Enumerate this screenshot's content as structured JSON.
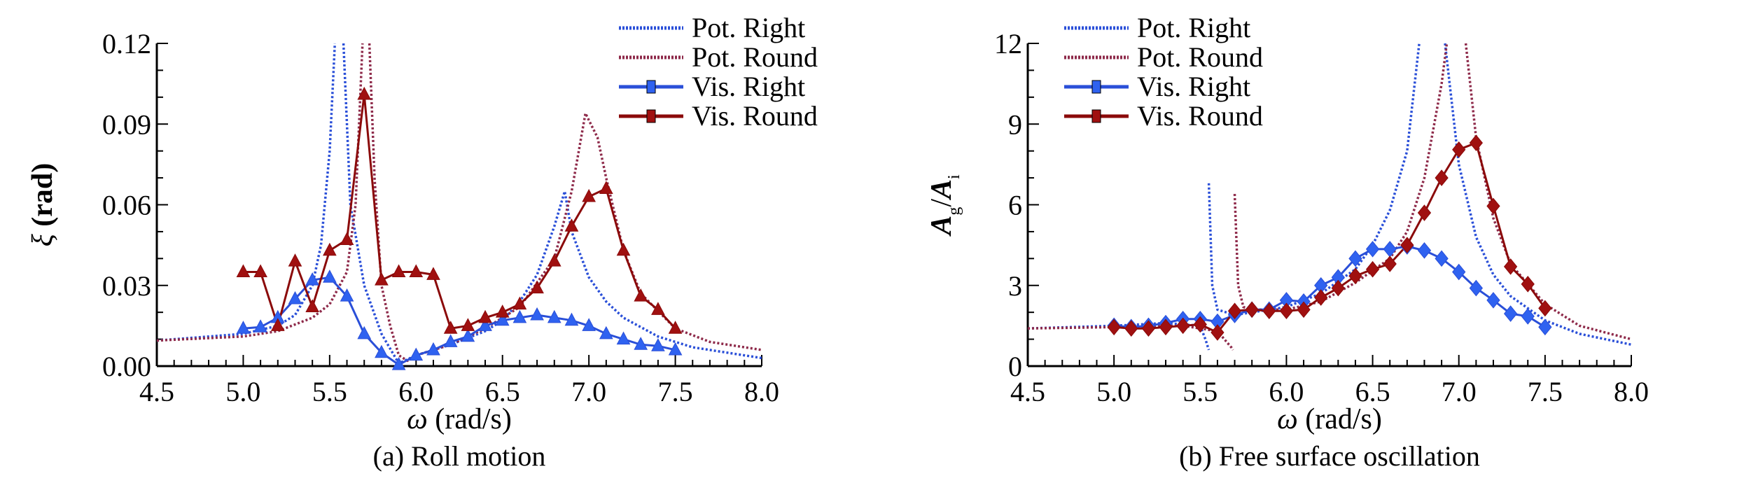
{
  "colors": {
    "pot_right": "#2a4fd8",
    "pot_round": "#8e2a4a",
    "vis_right": "#2f62f0",
    "vis_round": "#a01010",
    "vis_right_line": "#2a4fd8",
    "vis_round_line": "#8b0a0a"
  },
  "chart_data": [
    {
      "type": "line",
      "caption": "(a) Roll motion",
      "xlabel_symbol": "ω",
      "xlabel_unit": "(rad/s)",
      "ylabel_symbol": "ξ",
      "ylabel_unit": "(rad)",
      "xlim": [
        4.5,
        8.0
      ],
      "ylim": [
        0,
        0.12
      ],
      "xticks": [
        "4.5",
        "5.0",
        "5.5",
        "6.0",
        "6.5",
        "7.0",
        "7.5",
        "8.0"
      ],
      "yticks": [
        "0.00",
        "0.03",
        "0.06",
        "0.09",
        "0.12"
      ],
      "legend_placement": "top-right",
      "series": [
        {
          "name": "Pot. Right",
          "style": "dotted",
          "color_key": "pot_right",
          "x": [
            4.5,
            5.0,
            5.2,
            5.3,
            5.4,
            5.45,
            5.5,
            5.53,
            null,
            5.58,
            5.62,
            5.7,
            5.8,
            5.9,
            6.0,
            6.2,
            6.4,
            6.5,
            6.6,
            6.7,
            6.8,
            6.86,
            6.9,
            7.0,
            7.1,
            7.2,
            7.4,
            7.6,
            8.0
          ],
          "y": [
            0.0095,
            0.012,
            0.015,
            0.019,
            0.03,
            0.045,
            0.08,
            0.12,
            null,
            0.12,
            0.06,
            0.03,
            0.012,
            0.001,
            0.004,
            0.008,
            0.013,
            0.017,
            0.024,
            0.034,
            0.052,
            0.065,
            0.05,
            0.033,
            0.024,
            0.018,
            0.011,
            0.007,
            0.003
          ]
        },
        {
          "name": "Pot. Round",
          "style": "dotted",
          "color_key": "pot_round",
          "x": [
            4.5,
            5.0,
            5.2,
            5.4,
            5.5,
            5.6,
            5.65,
            5.69,
            null,
            5.73,
            5.76,
            5.8,
            5.85,
            5.9,
            5.95,
            6.0,
            6.2,
            6.4,
            6.6,
            6.8,
            6.9,
            6.98,
            7.05,
            7.1,
            7.2,
            7.3,
            7.5,
            7.7,
            8.0
          ],
          "y": [
            0.0095,
            0.011,
            0.013,
            0.018,
            0.023,
            0.035,
            0.06,
            0.12,
            null,
            0.12,
            0.07,
            0.03,
            0.015,
            0.004,
            0.002,
            0.004,
            0.008,
            0.014,
            0.022,
            0.04,
            0.065,
            0.094,
            0.085,
            0.07,
            0.043,
            0.027,
            0.014,
            0.009,
            0.006
          ]
        },
        {
          "name": "Vis. Right",
          "style": "solid",
          "marker": "triangle",
          "color_key": "vis_right",
          "x": [
            5.0,
            5.1,
            5.2,
            5.3,
            5.4,
            5.5,
            5.6,
            5.7,
            5.8,
            5.9,
            6.0,
            6.1,
            6.2,
            6.3,
            6.4,
            6.5,
            6.6,
            6.7,
            6.8,
            6.9,
            7.0,
            7.1,
            7.2,
            7.3,
            7.4,
            7.5
          ],
          "y": [
            0.014,
            0.0145,
            0.018,
            0.025,
            0.032,
            0.033,
            0.026,
            0.012,
            0.005,
            0.0005,
            0.004,
            0.006,
            0.009,
            0.011,
            0.015,
            0.017,
            0.018,
            0.019,
            0.018,
            0.017,
            0.015,
            0.012,
            0.01,
            0.008,
            0.0075,
            0.006
          ]
        },
        {
          "name": "Vis. Round",
          "style": "solid",
          "marker": "triangle",
          "color_key": "vis_round",
          "x": [
            5.0,
            5.1,
            5.2,
            5.3,
            5.4,
            5.5,
            5.6,
            5.7,
            5.8,
            5.9,
            6.0,
            6.1,
            6.2,
            6.3,
            6.4,
            6.5,
            6.6,
            6.7,
            6.8,
            6.9,
            7.0,
            7.1,
            7.2,
            7.3,
            7.4,
            7.5
          ],
          "y": [
            0.035,
            0.035,
            0.015,
            0.039,
            0.022,
            0.043,
            0.047,
            0.101,
            0.032,
            0.035,
            0.035,
            0.034,
            0.014,
            0.015,
            0.018,
            0.02,
            0.023,
            0.029,
            0.039,
            0.052,
            0.063,
            0.066,
            0.043,
            0.026,
            0.021,
            0.014
          ]
        }
      ]
    },
    {
      "type": "line",
      "caption": "(b) Free surface oscillation",
      "xlabel_symbol": "ω",
      "xlabel_unit": "(rad/s)",
      "ylabel_symbol": "A",
      "ylabel_sub1": "g",
      "ylabel_sep": "/",
      "ylabel_sub2": "i",
      "xlim": [
        4.5,
        8.0
      ],
      "ylim": [
        0,
        12
      ],
      "xticks": [
        "4.5",
        "5.0",
        "5.5",
        "6.0",
        "6.5",
        "7.0",
        "7.5",
        "8.0"
      ],
      "yticks": [
        "0",
        "3",
        "6",
        "9",
        "12"
      ],
      "legend_placement": "top-left",
      "series": [
        {
          "name": "Pot. Right",
          "style": "dotted",
          "color_key": "pot_right",
          "x": [
            4.5,
            5.0,
            5.3,
            5.5,
            5.53,
            5.55,
            null,
            5.55,
            5.57,
            5.6,
            5.7,
            5.8,
            6.0,
            6.2,
            6.4,
            6.5,
            6.6,
            6.7,
            6.77,
            null,
            6.92,
            7.0,
            7.1,
            7.2,
            7.3,
            7.5,
            7.7,
            8.0
          ],
          "y": [
            1.4,
            1.5,
            1.6,
            1.5,
            1.0,
            0.6,
            null,
            6.8,
            3.0,
            2.1,
            1.9,
            2.0,
            2.2,
            2.7,
            3.6,
            4.5,
            5.8,
            8.0,
            12,
            null,
            12,
            7.5,
            4.8,
            3.4,
            2.6,
            1.7,
            1.2,
            0.8
          ]
        },
        {
          "name": "Pot. Round",
          "style": "dotted",
          "color_key": "pot_round",
          "x": [
            4.5,
            5.0,
            5.4,
            5.6,
            5.68,
            5.69,
            null,
            5.7,
            5.72,
            5.75,
            5.8,
            6.0,
            6.2,
            6.4,
            6.6,
            6.7,
            6.8,
            6.9,
            6.93,
            null,
            7.04,
            7.1,
            7.2,
            7.3,
            7.5,
            7.7,
            8.0
          ],
          "y": [
            1.4,
            1.45,
            1.5,
            1.3,
            0.7,
            0.6,
            null,
            6.4,
            3.0,
            2.2,
            2.1,
            2.1,
            2.4,
            3.1,
            4.0,
            5.0,
            7.0,
            10.5,
            12,
            null,
            12,
            8.5,
            5.5,
            3.8,
            2.3,
            1.5,
            1.0
          ]
        },
        {
          "name": "Vis. Right",
          "style": "solid",
          "marker": "diamond",
          "color_key": "vis_right",
          "x": [
            5.0,
            5.1,
            5.2,
            5.3,
            5.4,
            5.5,
            5.6,
            5.7,
            5.8,
            5.9,
            6.0,
            6.1,
            6.2,
            6.3,
            6.4,
            6.5,
            6.6,
            6.7,
            6.8,
            6.9,
            7.0,
            7.1,
            7.2,
            7.3,
            7.4,
            7.5
          ],
          "y": [
            1.5,
            1.45,
            1.5,
            1.6,
            1.75,
            1.75,
            1.65,
            1.9,
            2.1,
            2.1,
            2.45,
            2.4,
            3.0,
            3.3,
            4.0,
            4.35,
            4.35,
            4.45,
            4.3,
            4.0,
            3.5,
            2.9,
            2.45,
            1.95,
            1.85,
            1.45
          ]
        },
        {
          "name": "Vis. Round",
          "style": "solid",
          "marker": "diamond",
          "color_key": "vis_round",
          "x": [
            5.0,
            5.1,
            5.2,
            5.3,
            5.4,
            5.5,
            5.6,
            5.7,
            5.8,
            5.9,
            6.0,
            6.1,
            6.2,
            6.3,
            6.4,
            6.5,
            6.6,
            6.7,
            6.8,
            6.9,
            7.0,
            7.1,
            7.2,
            7.3,
            7.4,
            7.5
          ],
          "y": [
            1.45,
            1.4,
            1.4,
            1.45,
            1.5,
            1.55,
            1.25,
            2.05,
            2.1,
            2.05,
            2.05,
            2.1,
            2.55,
            2.9,
            3.35,
            3.6,
            3.8,
            4.5,
            5.7,
            7.0,
            8.05,
            8.3,
            5.95,
            3.7,
            3.05,
            2.15
          ]
        }
      ]
    }
  ]
}
